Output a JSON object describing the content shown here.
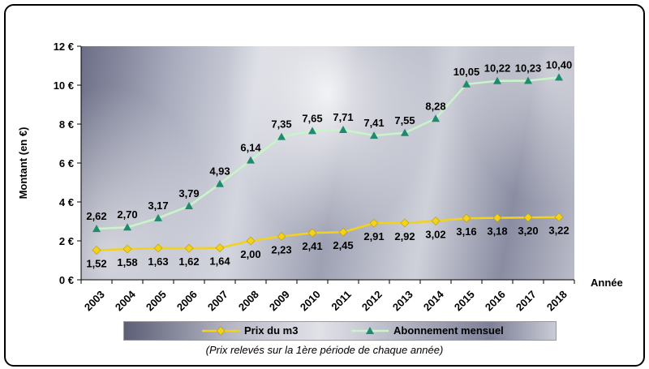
{
  "chart_data": {
    "type": "line",
    "categories": [
      "2003",
      "2004",
      "2005",
      "2006",
      "2007",
      "2008",
      "2009",
      "2010",
      "2011",
      "2012",
      "2013",
      "2014",
      "2015",
      "2016",
      "2017",
      "2018"
    ],
    "series": [
      {
        "name": "Prix du m3",
        "color": "#f2d21b",
        "marker": "diamond",
        "values": [
          1.52,
          1.58,
          1.63,
          1.62,
          1.64,
          2.0,
          2.23,
          2.41,
          2.45,
          2.91,
          2.92,
          3.02,
          3.16,
          3.18,
          3.2,
          3.22
        ],
        "labels": [
          "1,52",
          "1,58",
          "1,63",
          "1,62",
          "1,64",
          "2,00",
          "2,23",
          "2,41",
          "2,45",
          "2,91",
          "2,92",
          "3,02",
          "3,16",
          "3,18",
          "3,20",
          "3,22"
        ]
      },
      {
        "name": "Abonnement mensuel",
        "color": "#c8f5c8",
        "marker": "triangle",
        "marker_color": "#1e8a6e",
        "values": [
          2.62,
          2.7,
          3.17,
          3.79,
          4.93,
          6.14,
          7.35,
          7.65,
          7.71,
          7.41,
          7.55,
          8.28,
          10.05,
          10.22,
          10.23,
          10.4
        ],
        "labels": [
          "2,62",
          "2,70",
          "3,17",
          "3,79",
          "4,93",
          "6,14",
          "7,35",
          "7,65",
          "7,71",
          "7,41",
          "7,55",
          "8,28",
          "10,05",
          "10,22",
          "10,23",
          "10,40"
        ]
      }
    ],
    "ylim": [
      0,
      12
    ],
    "yticks": [
      "0 €",
      "2 €",
      "4 €",
      "6 €",
      "8 €",
      "10 €",
      "12 €"
    ],
    "xlabel": "Année",
    "ylabel": "Montant (en €)",
    "legend_position": "bottom",
    "grid": false
  },
  "note": "(Prix relevés sur la 1ère période de chaque année)"
}
